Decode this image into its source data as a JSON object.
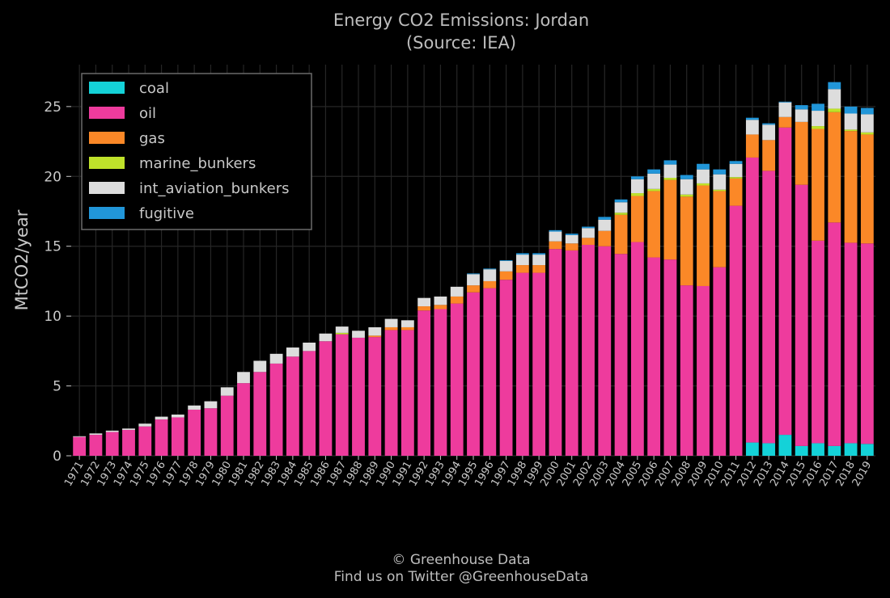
{
  "title": "Energy CO2 Emissions: Jordan",
  "subtitle": "(Source: IEA)",
  "footer": {
    "credit": "© Greenhouse Data",
    "social": "Find us on Twitter @GreenhouseData"
  },
  "colors": {
    "background": "#000000",
    "grid": "#262626",
    "text": "#c8c8c8",
    "coal": "#14d2d8",
    "oil": "#ee3b9d",
    "gas": "#fb8827",
    "marine_bunkers": "#bfe22a",
    "int_aviation_bunkers": "#dddddd",
    "fugitive": "#2196d9"
  },
  "chart_data": {
    "type": "bar",
    "stacked": true,
    "title": "Energy CO2 Emissions: Jordan",
    "subtitle": "(Source: IEA)",
    "xlabel": "",
    "ylabel": "MtCO2/year",
    "ylim": [
      0,
      28
    ],
    "yticks": [
      0,
      5,
      10,
      15,
      20,
      25
    ],
    "grid": true,
    "legend_position": "top-left",
    "categories": [
      "1971",
      "1972",
      "1973",
      "1974",
      "1975",
      "1976",
      "1977",
      "1978",
      "1979",
      "1980",
      "1981",
      "1982",
      "1983",
      "1984",
      "1985",
      "1986",
      "1987",
      "1988",
      "1989",
      "1990",
      "1991",
      "1992",
      "1993",
      "1994",
      "1995",
      "1996",
      "1997",
      "1998",
      "1999",
      "2000",
      "2001",
      "2002",
      "2003",
      "2004",
      "2005",
      "2006",
      "2007",
      "2008",
      "2009",
      "2010",
      "2011",
      "2012",
      "2013",
      "2014",
      "2015",
      "2016",
      "2017",
      "2018",
      "2019"
    ],
    "series": [
      {
        "name": "coal",
        "values": [
          0,
          0,
          0,
          0,
          0,
          0,
          0,
          0,
          0,
          0,
          0,
          0,
          0,
          0,
          0,
          0,
          0,
          0,
          0,
          0,
          0,
          0,
          0,
          0,
          0,
          0,
          0,
          0,
          0,
          0,
          0,
          0,
          0,
          0,
          0,
          0,
          0,
          0,
          0,
          0,
          0,
          0.95,
          0.9,
          1.5,
          0.7,
          0.9,
          0.7,
          0.9,
          0.85
        ]
      },
      {
        "name": "oil",
        "values": [
          1.35,
          1.5,
          1.7,
          1.85,
          2.1,
          2.6,
          2.75,
          3.3,
          3.4,
          4.3,
          5.2,
          6.0,
          6.6,
          7.1,
          7.5,
          8.2,
          8.7,
          8.45,
          8.5,
          9.0,
          9.0,
          10.4,
          10.5,
          10.9,
          11.7,
          12.0,
          12.6,
          13.1,
          13.1,
          14.8,
          14.7,
          15.1,
          15.0,
          14.45,
          15.3,
          14.2,
          14.05,
          12.2,
          12.15,
          13.5,
          17.9,
          20.4,
          19.5,
          22.0,
          18.7,
          14.5,
          16.0,
          14.35,
          14.35
        ]
      },
      {
        "name": "gas",
        "values": [
          0,
          0,
          0,
          0,
          0,
          0,
          0,
          0,
          0,
          0,
          0,
          0,
          0,
          0,
          0,
          0,
          0,
          0,
          0.1,
          0.2,
          0.2,
          0.3,
          0.3,
          0.5,
          0.5,
          0.5,
          0.6,
          0.55,
          0.55,
          0.55,
          0.5,
          0.5,
          1.1,
          2.8,
          3.3,
          4.75,
          5.7,
          6.35,
          7.2,
          5.45,
          1.95,
          1.65,
          2.2,
          0.75,
          4.5,
          8.0,
          7.9,
          8.0,
          7.8
        ]
      },
      {
        "name": "marine_bunkers",
        "values": [
          0,
          0,
          0,
          0,
          0,
          0,
          0,
          0,
          0,
          0,
          0,
          0,
          0,
          0,
          0,
          0,
          0.1,
          0,
          0,
          0,
          0,
          0,
          0,
          0,
          0,
          0,
          0,
          0,
          0,
          0,
          0,
          0,
          0,
          0.15,
          0.2,
          0.15,
          0.15,
          0.15,
          0.15,
          0.1,
          0.1,
          0,
          0,
          0,
          0,
          0.2,
          0.25,
          0.1,
          0.15
        ]
      },
      {
        "name": "int_aviation_bunkers",
        "values": [
          0.05,
          0.1,
          0.1,
          0.1,
          0.2,
          0.2,
          0.2,
          0.3,
          0.5,
          0.6,
          0.8,
          0.8,
          0.7,
          0.65,
          0.6,
          0.55,
          0.45,
          0.5,
          0.6,
          0.6,
          0.5,
          0.6,
          0.6,
          0.7,
          0.8,
          0.85,
          0.75,
          0.75,
          0.75,
          0.7,
          0.6,
          0.7,
          0.8,
          0.75,
          1.0,
          1.1,
          0.95,
          1.1,
          1.0,
          1.1,
          0.95,
          1.05,
          1.1,
          1.05,
          0.9,
          1.1,
          1.4,
          1.15,
          1.3
        ]
      },
      {
        "name": "fugitive",
        "values": [
          0,
          0,
          0,
          0,
          0,
          0,
          0,
          0,
          0,
          0,
          0,
          0,
          0,
          0,
          0,
          0,
          0,
          0,
          0,
          0,
          0,
          0,
          0,
          0,
          0.05,
          0.05,
          0.05,
          0.1,
          0.1,
          0.1,
          0.1,
          0.1,
          0.2,
          0.2,
          0.2,
          0.3,
          0.3,
          0.3,
          0.4,
          0.35,
          0.2,
          0.15,
          0.1,
          0.05,
          0.3,
          0.5,
          0.5,
          0.5,
          0.45
        ]
      }
    ]
  }
}
